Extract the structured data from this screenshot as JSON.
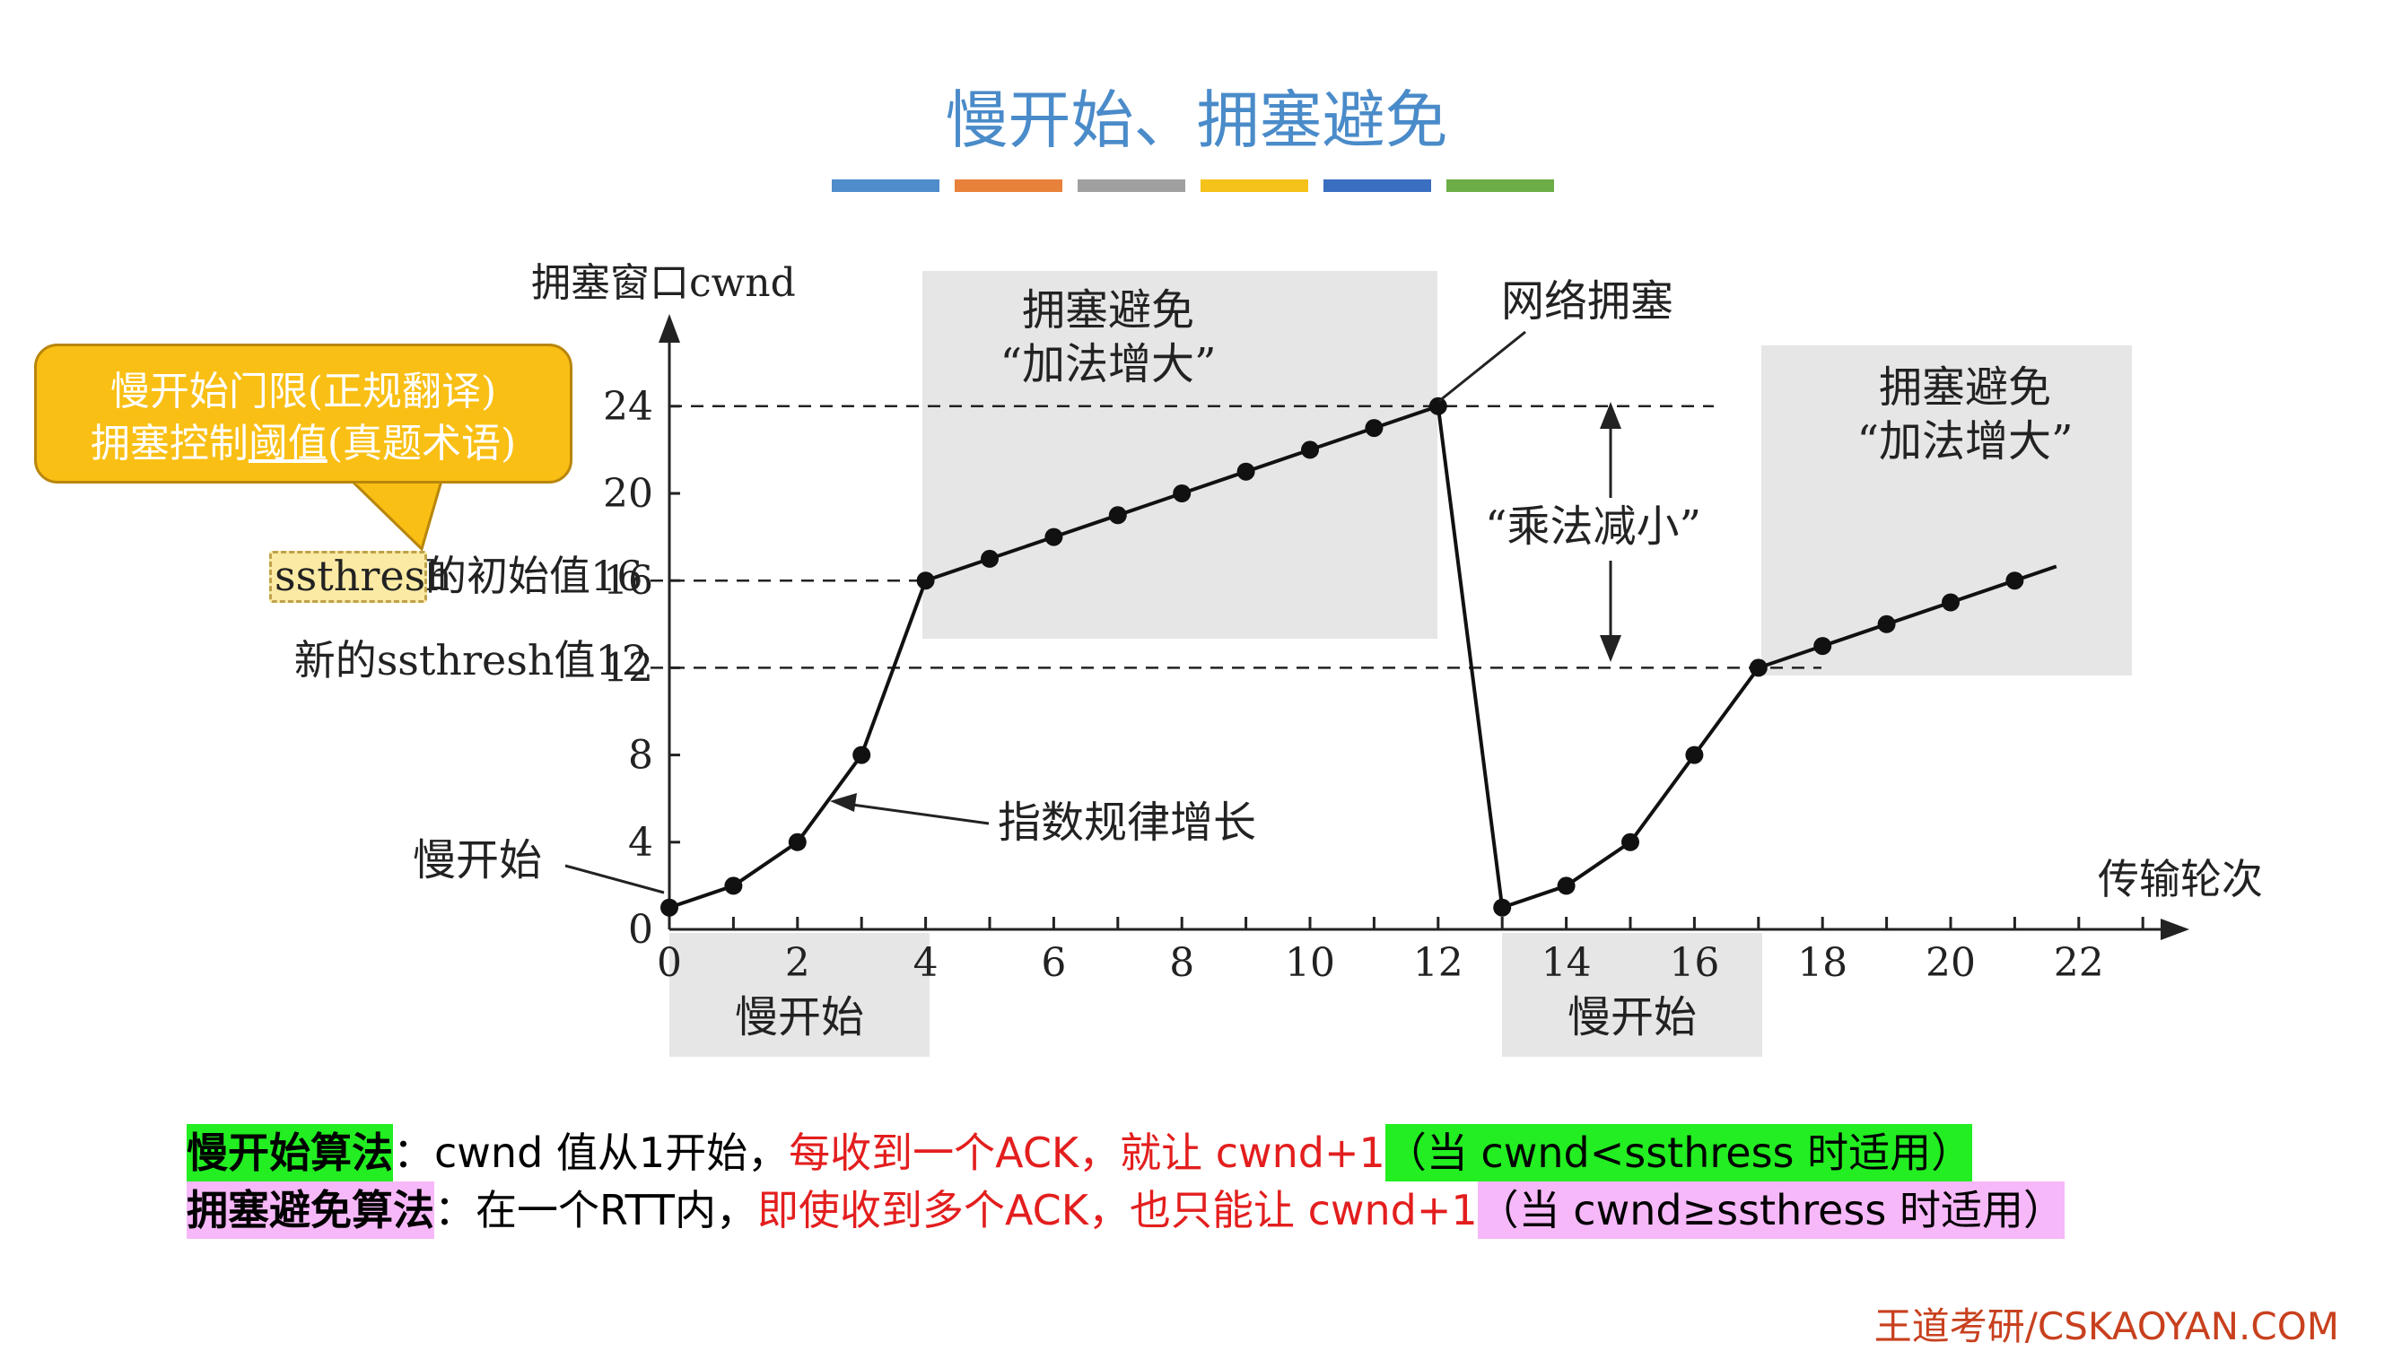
{
  "title": "慢开始、拥塞避免",
  "deco_colors": [
    "#4e8ccb",
    "#e8813a",
    "#a0a0a0",
    "#f5c21a",
    "#3a6ec0",
    "#6cae45"
  ],
  "callout": {
    "line1": "慢开始门限(正规翻译)",
    "line2_pre": "拥塞控制",
    "line2_underlined": "阈值",
    "line2_post": "(真题术语)"
  },
  "axis": {
    "ylabel": "拥塞窗口cwnd",
    "xlabel": "传输轮次",
    "y_ticks": [
      "0",
      "4",
      "8",
      "12",
      "16",
      "20",
      "24"
    ],
    "x_ticks": [
      "0",
      "2",
      "4",
      "6",
      "8",
      "10",
      "12",
      "14",
      "16",
      "18",
      "20",
      "22"
    ]
  },
  "labels": {
    "ssthresh_word": "ssthresh",
    "ssthresh_init_rest": "的初始值16",
    "new_ssthresh": "新的ssthresh值12",
    "slow_start_left": "慢开始",
    "exponential": "指数规律增长",
    "congestion": "网络拥塞",
    "multiplicative": "“乘法减小”",
    "ca1_line1": "拥塞避免",
    "ca1_line2": "“加法增大”",
    "ca2_line1": "拥塞避免",
    "ca2_line2": "“加法增大”",
    "ss_box1": "慢开始",
    "ss_box2": "慢开始"
  },
  "chart_data": {
    "type": "line",
    "xlabel": "传输轮次",
    "ylabel": "拥塞窗口cwnd",
    "series": [
      {
        "name": "",
        "x": [
          0,
          1,
          2,
          3,
          4,
          5,
          6,
          7,
          8,
          9,
          10,
          11,
          12,
          13,
          14,
          15,
          16,
          17,
          18,
          19,
          20,
          21
        ],
        "values": [
          1,
          2,
          4,
          8,
          16,
          17,
          18,
          19,
          20,
          21,
          22,
          23,
          24,
          1,
          2,
          4,
          8,
          12,
          13,
          14,
          15,
          16
        ]
      }
    ],
    "thresholds": [
      24,
      16,
      12
    ]
  },
  "bottom": {
    "l1_label": "慢开始算法",
    "l1_colon": "：cwnd 值从1开始，",
    "l1_red": "每收到一个ACK，就让 cwnd+1",
    "l1_cond": "（当 cwnd<ssthress 时适用）",
    "l2_label": "拥塞避免算法",
    "l2_colon": "：在一个RTT内，",
    "l2_red": "即使收到多个ACK，也只能让 cwnd+1",
    "l2_cond": "（当 cwnd≥ssthress 时适用）"
  },
  "footer": "王道考研/CSKAOYAN.COM"
}
